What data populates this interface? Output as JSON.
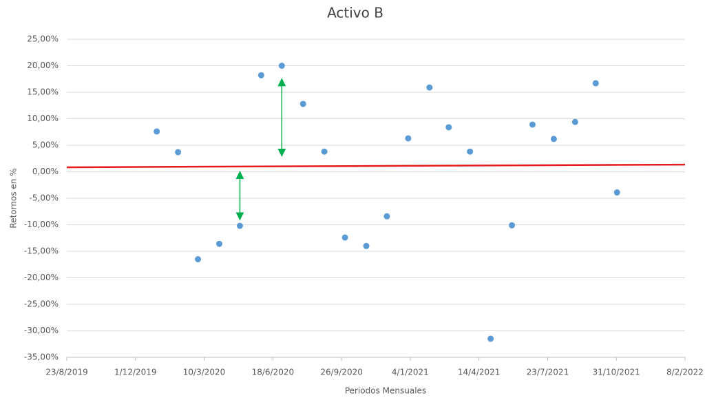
{
  "chart_data": {
    "type": "scatter",
    "title": "Activo B",
    "x_label": "Periodos Mensuales",
    "y_label": "Retornos en %",
    "series": [
      {
        "name": "Activo B",
        "color": "#5b9bd5",
        "x": [
          "1/1/2020",
          "1/2/2020",
          "1/3/2020",
          "1/4/2020",
          "1/5/2020",
          "1/6/2020",
          "1/7/2020",
          "1/8/2020",
          "1/9/2020",
          "1/10/2020",
          "1/11/2020",
          "1/12/2020",
          "1/1/2021",
          "1/2/2021",
          "1/3/2021",
          "1/4/2021",
          "1/5/2021",
          "1/6/2021",
          "1/7/2021",
          "1/8/2021",
          "1/9/2021",
          "1/10/2021",
          "1/11/2021"
        ],
        "values": [
          7.6,
          3.7,
          -16.5,
          -13.6,
          -10.2,
          18.2,
          20.0,
          12.8,
          3.8,
          -12.4,
          -14.0,
          -8.4,
          6.3,
          15.9,
          8.4,
          3.8,
          -31.5,
          -10.1,
          8.9,
          6.2,
          9.4,
          16.7,
          -3.9
        ]
      }
    ],
    "trendline": {
      "color": "#e41a1c",
      "x": [
        "23/8/2019",
        "8/2/2022"
      ],
      "values": [
        0.85,
        1.35
      ]
    },
    "arrows": {
      "color": "#00b050",
      "items": [
        {
          "x": "1/7/2020",
          "from": 17.5,
          "to": 3.0
        },
        {
          "x": "1/5/2020",
          "from": 0.0,
          "to": -9.0
        }
      ]
    },
    "xlim": [
      "23/8/2019",
      "8/2/2022"
    ],
    "xticks": [
      "23/8/2019",
      "1/12/2019",
      "10/3/2020",
      "18/6/2020",
      "26/9/2020",
      "4/1/2021",
      "14/4/2021",
      "23/7/2021",
      "31/10/2021",
      "8/2/2022"
    ],
    "ylim": [
      -35,
      25
    ],
    "yticks": [
      {
        "value": 25,
        "label": "25,00%"
      },
      {
        "value": 20,
        "label": "20,00%"
      },
      {
        "value": 15,
        "label": "15,00%"
      },
      {
        "value": 10,
        "label": "10,00%"
      },
      {
        "value": 5,
        "label": "5,00%"
      },
      {
        "value": 0,
        "label": "0,00%"
      },
      {
        "value": -5,
        "label": "-5,00%"
      },
      {
        "value": -10,
        "label": "-10,00%"
      },
      {
        "value": -15,
        "label": "-15,00%"
      },
      {
        "value": -20,
        "label": "-20,00%"
      },
      {
        "value": -25,
        "label": "-25,00%"
      },
      {
        "value": -30,
        "label": "-30,00%"
      },
      {
        "value": -35,
        "label": "-35,00%"
      }
    ],
    "grid": true
  }
}
